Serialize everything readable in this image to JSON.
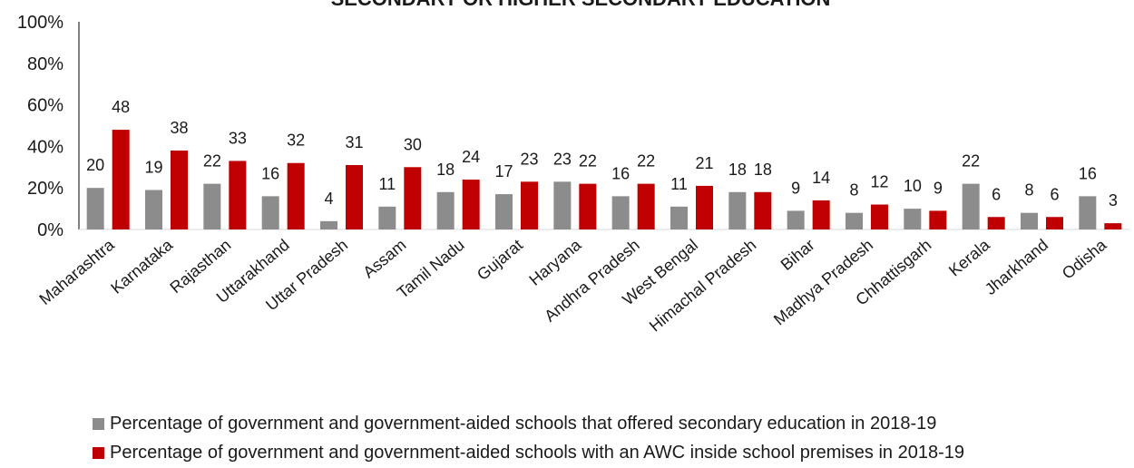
{
  "chart_data": {
    "type": "bar",
    "title": "SECONDARY OR HIGHER SECONDARY EDUCATION",
    "xlabel": "",
    "ylabel": "",
    "ylim": [
      0,
      100
    ],
    "yticks": [
      "0%",
      "20%",
      "40%",
      "60%",
      "80%",
      "100%"
    ],
    "grid": false,
    "legend": "bottom",
    "categories": [
      "Maharashtra",
      "Karnataka",
      "Rajasthan",
      "Uttarakhand",
      "Uttar Pradesh",
      "Assam",
      "Tamil Nadu",
      "Gujarat",
      "Haryana",
      "Andhra Pradesh",
      "West Bengal",
      "Himachal Pradesh",
      "Bihar",
      "Madhya Pradesh",
      "Chhattisgarh",
      "Kerala",
      "Jharkhand",
      "Odisha"
    ],
    "series": [
      {
        "name": "Percentage of government and government-aided schools that offered secondary education in 2018-19",
        "color": "#8c8c8c",
        "values": [
          20,
          19,
          22,
          16,
          4,
          11,
          18,
          17,
          23,
          16,
          11,
          18,
          9,
          8,
          10,
          22,
          8,
          16
        ]
      },
      {
        "name": "Percentage of government and government-aided schools with an AWC inside school premises in 2018-19",
        "color": "#c00000",
        "values": [
          48,
          38,
          33,
          32,
          31,
          30,
          24,
          23,
          22,
          22,
          21,
          18,
          14,
          12,
          9,
          6,
          6,
          3
        ]
      }
    ]
  }
}
